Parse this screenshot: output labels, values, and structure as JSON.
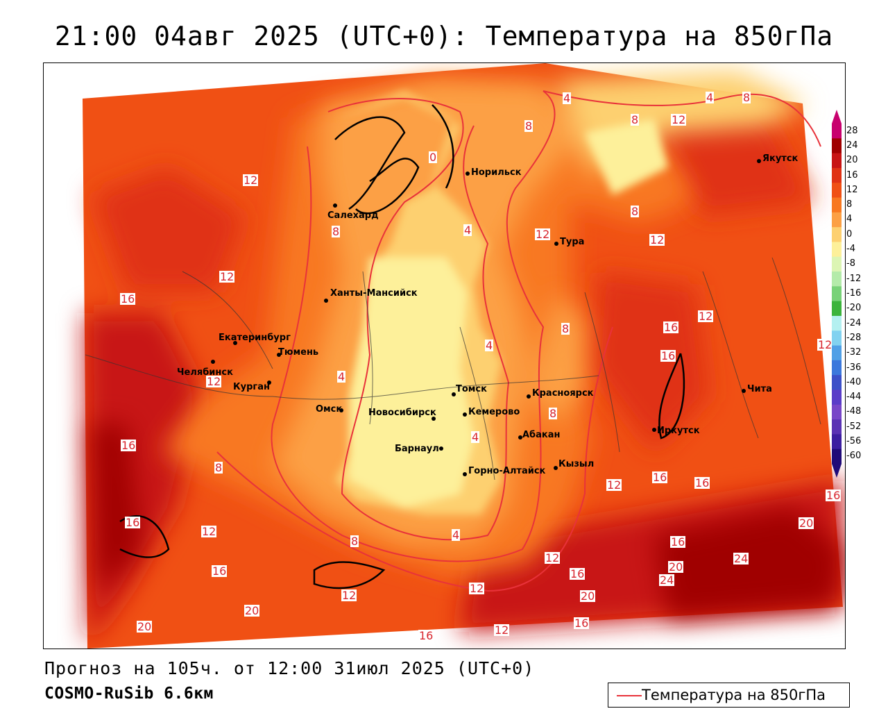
{
  "title": "21:00 04авг 2025 (UTC+0): Температура на 850гПа",
  "footer": {
    "forecast": "Прогноз на 105ч. от 12:00 31июл 2025 (UTC+0)",
    "model": "COSMO-RuSib 6.6км"
  },
  "legend": {
    "label": "Температура на 850гПа",
    "line_color": "#e8323a"
  },
  "scale": {
    "ticks": [
      "28",
      "24",
      "20",
      "16",
      "12",
      "8",
      "4",
      "0",
      "-4",
      "-8",
      "-12",
      "-16",
      "-20",
      "-24",
      "-28",
      "-32",
      "-36",
      "-40",
      "-44",
      "-48",
      "-52",
      "-56",
      "-60"
    ],
    "colors": [
      "#c8006e",
      "#a00000",
      "#c81414",
      "#e03214",
      "#f05014",
      "#f87820",
      "#fca044",
      "#fdd070",
      "#fdf09a",
      "#dcf5b4",
      "#b4ebaa",
      "#78d278",
      "#3cb43c",
      "#b4f0f0",
      "#82d2f0",
      "#50a0e6",
      "#3c78dc",
      "#3c50c8",
      "#5a3cc8",
      "#7846c8",
      "#5a32b4",
      "#3c1ea0",
      "#200a78"
    ]
  },
  "cities": [
    {
      "name": "Норильск"
    },
    {
      "name": "Якутск"
    },
    {
      "name": "Салехард"
    },
    {
      "name": "Тура"
    },
    {
      "name": "Ханты-Мансийск"
    },
    {
      "name": "Екатеринбург"
    },
    {
      "name": "Тюмень"
    },
    {
      "name": "Челябинск"
    },
    {
      "name": "Курган"
    },
    {
      "name": "Омск"
    },
    {
      "name": "Новосибирск"
    },
    {
      "name": "Томск"
    },
    {
      "name": "Кемерово"
    },
    {
      "name": "Красноярск"
    },
    {
      "name": "Абакан"
    },
    {
      "name": "Барнаул"
    },
    {
      "name": "Горно-Алтайск"
    },
    {
      "name": "Кызыл"
    },
    {
      "name": "Иркутск"
    },
    {
      "name": "Чита"
    }
  ],
  "isoline_labels": [
    "4",
    "8",
    "12",
    "4",
    "8",
    "12",
    "8",
    "12",
    "0",
    "4",
    "12",
    "12",
    "8",
    "16",
    "12",
    "8",
    "4",
    "16",
    "12",
    "4",
    "16",
    "8",
    "16",
    "12",
    "12",
    "8",
    "16",
    "4",
    "8",
    "16",
    "16",
    "12",
    "8",
    "4",
    "12",
    "16",
    "12",
    "20",
    "16",
    "24",
    "16",
    "12",
    "20",
    "24",
    "20",
    "20",
    "16",
    "12",
    "16",
    "20",
    "16"
  ]
}
